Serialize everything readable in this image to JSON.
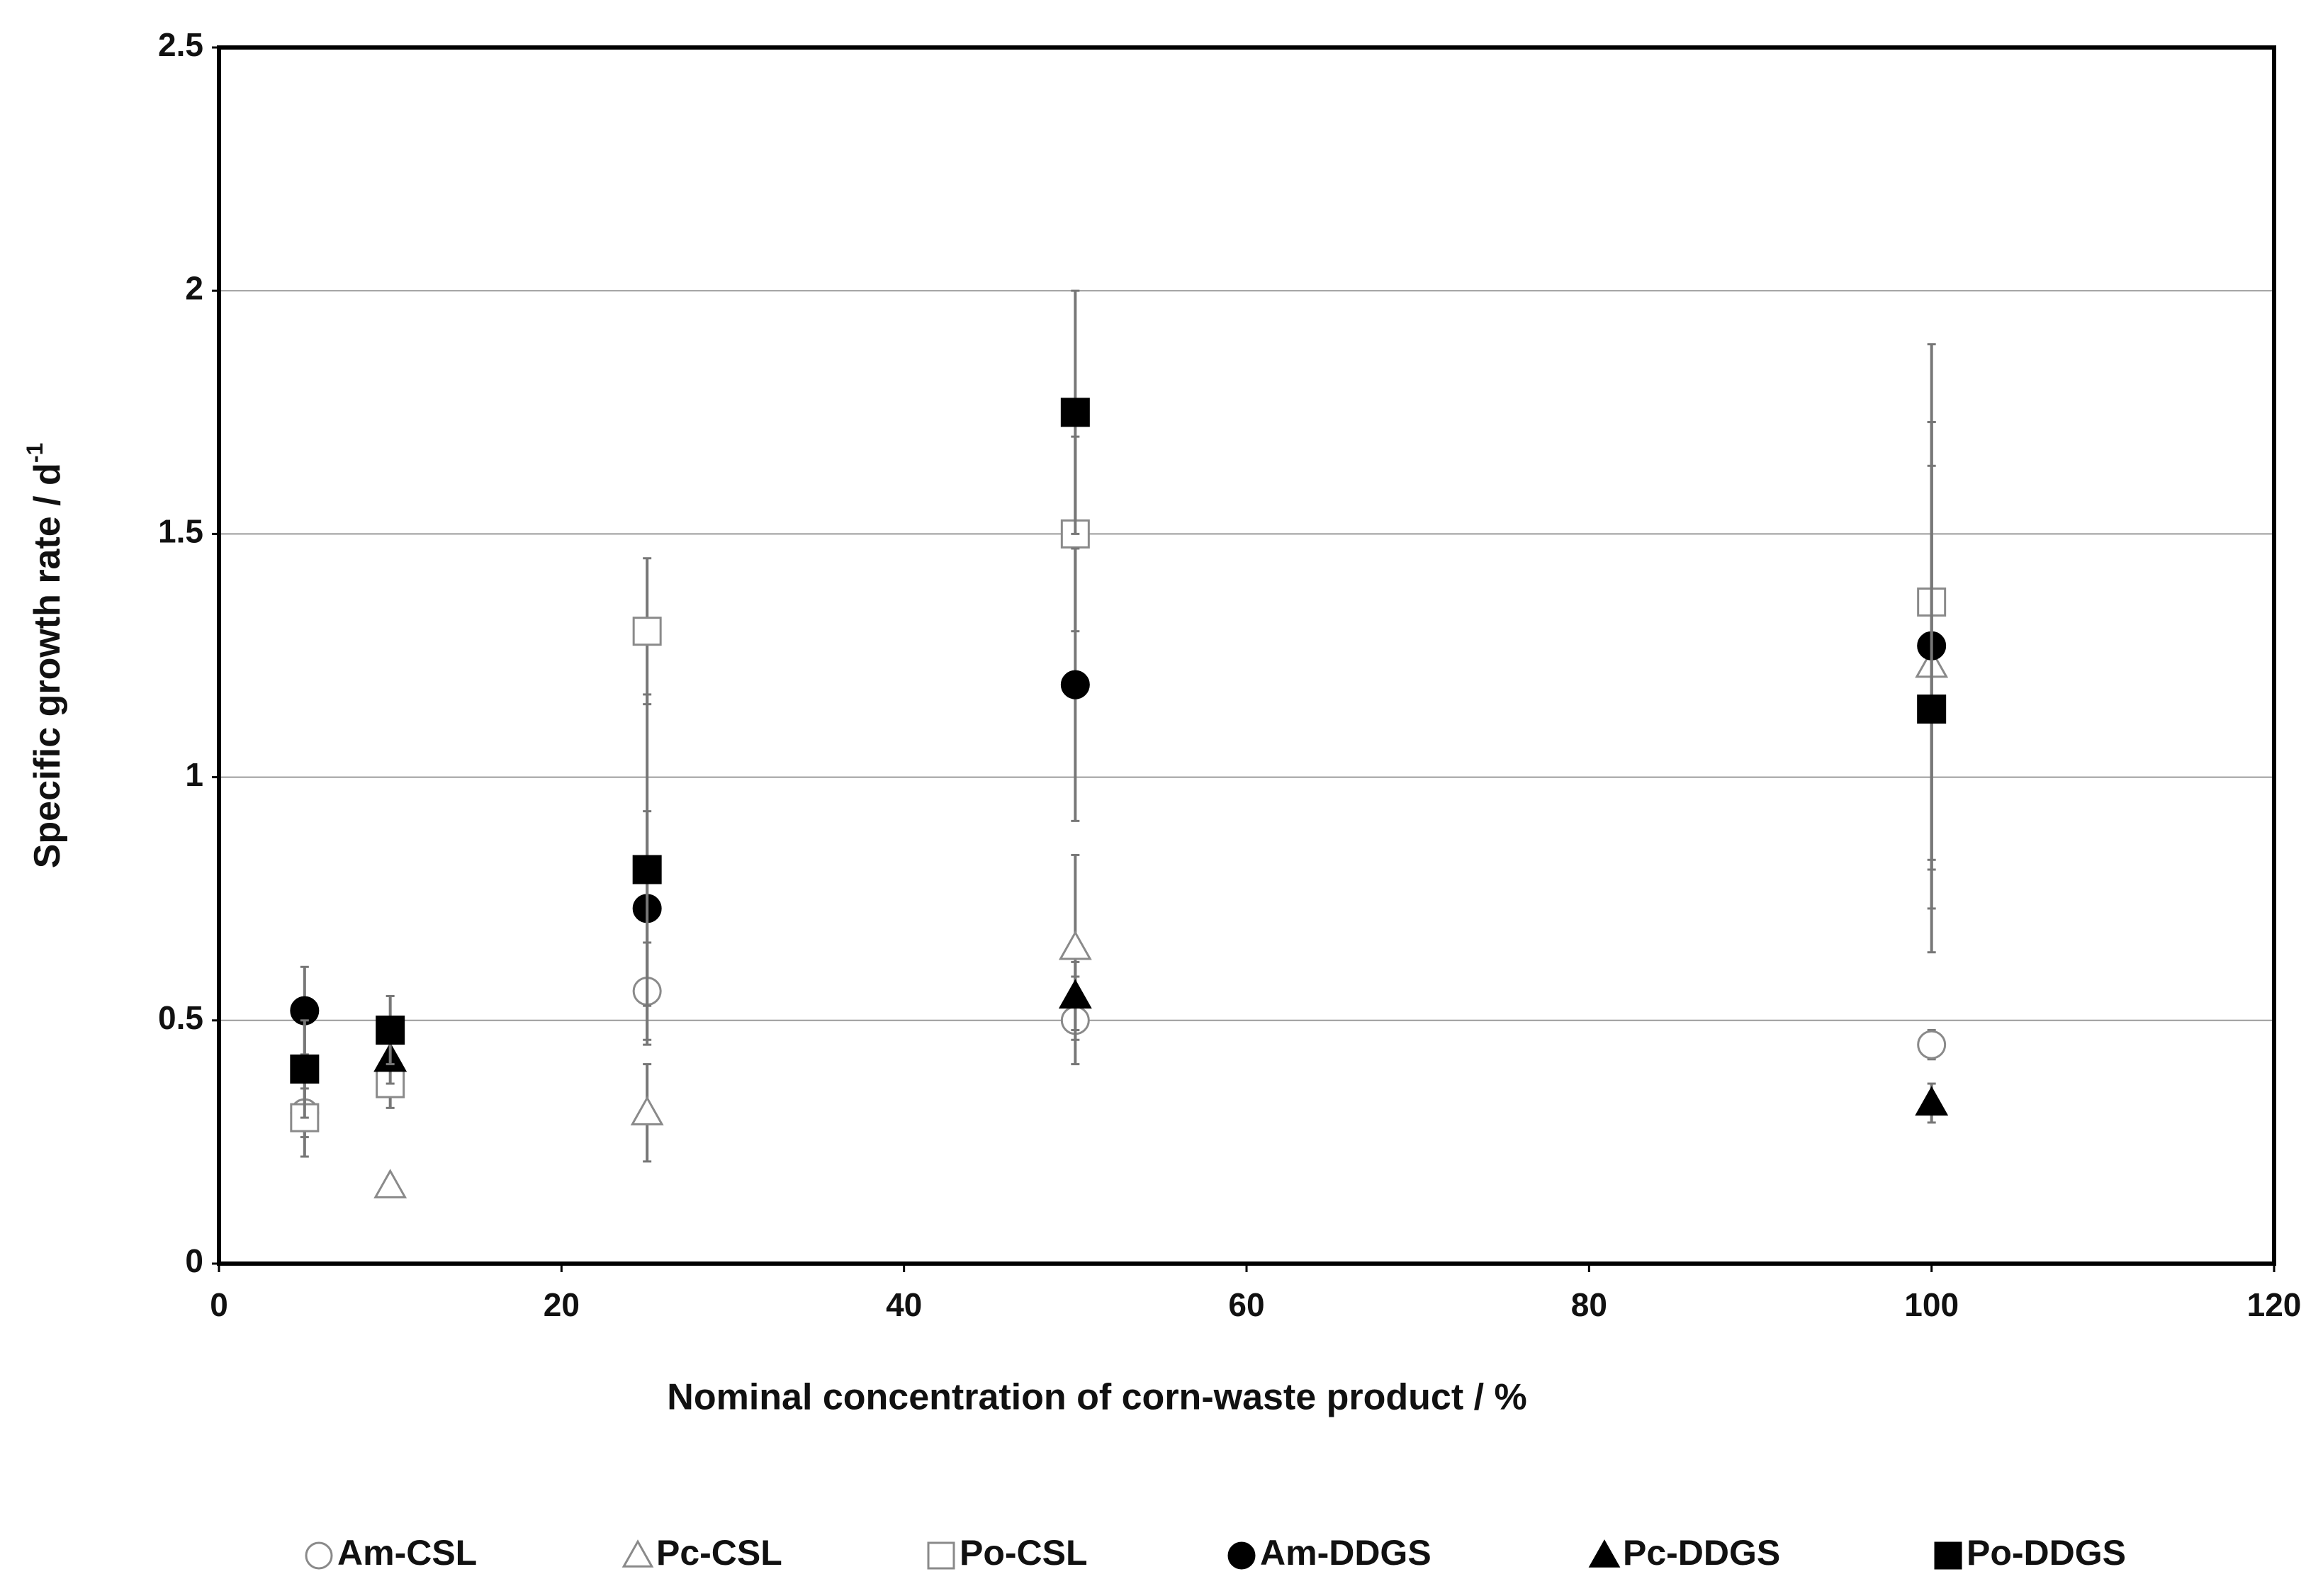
{
  "chart_data": {
    "type": "scatter",
    "xlabel": "Nominal concentration of corn-waste product / %",
    "ylabel": "Specific growth rate / d",
    "ylabel_sup": "-1",
    "x": [
      5,
      10,
      25,
      50,
      100
    ],
    "xlim": [
      0,
      120
    ],
    "xticks": [
      0,
      20,
      40,
      60,
      80,
      100,
      120
    ],
    "ylim": [
      0,
      2.5
    ],
    "yticks": [
      0,
      0.5,
      1,
      1.5,
      2,
      2.5
    ],
    "grid": true,
    "legend": "bottom",
    "series": [
      {
        "name": "Am-CSL",
        "marker": "circle",
        "color": "#ffffff",
        "values": [
          0.31,
          null,
          0.56,
          0.5,
          0.45
        ],
        "errors": [
          0.05,
          null,
          0.1,
          0.09,
          0.03
        ]
      },
      {
        "name": "Pc-CSL",
        "marker": "triangle",
        "color": "#ffffff",
        "values": [
          null,
          0.16,
          0.31,
          0.65,
          1.23
        ],
        "errors": [
          null,
          null,
          0.1,
          0.19,
          0.5
        ]
      },
      {
        "name": "Po-CSL",
        "marker": "square",
        "color": "#ffffff",
        "values": [
          0.3,
          0.37,
          1.3,
          1.5,
          1.36
        ],
        "errors": [
          0.08,
          0.05,
          0.15,
          0.2,
          0.53
        ]
      },
      {
        "name": "Am-DDGS",
        "marker": "circle",
        "color": "#000000",
        "values": [
          0.52,
          null,
          0.73,
          1.19,
          1.27
        ],
        "errors": [
          0.09,
          null,
          0.2,
          0.28,
          0.46
        ]
      },
      {
        "name": "Pc-DDGS",
        "marker": "triangle",
        "color": "#000000",
        "values": [
          null,
          0.42,
          null,
          0.55,
          0.33
        ],
        "errors": [
          null,
          0.05,
          null,
          0.07,
          0.04
        ]
      },
      {
        "name": "Po-DDGS",
        "marker": "square",
        "color": "#000000",
        "values": [
          0.4,
          0.48,
          0.81,
          1.75,
          1.14
        ],
        "errors": [
          0.1,
          0.07,
          0.36,
          0.25,
          0.5
        ]
      }
    ]
  }
}
